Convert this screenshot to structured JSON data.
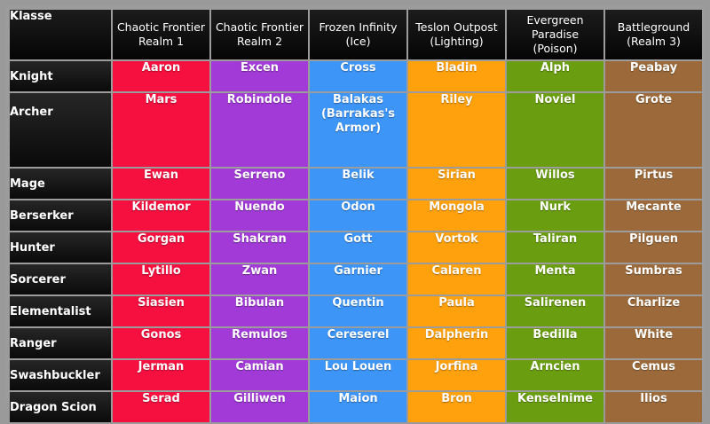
{
  "header": {
    "corner": "Klasse",
    "columns": [
      {
        "line1": "Chaotic Frontier",
        "line2": "Realm 1"
      },
      {
        "line1": "Chaotic Frontier",
        "line2": "Realm 2"
      },
      {
        "line1": "Frozen Infinity",
        "line2": "(Ice)"
      },
      {
        "line1": "Teslon Outpost",
        "line2": "(Lighting)"
      },
      {
        "line1": "Evergreen Paradise",
        "line2": "(Poison)"
      },
      {
        "line1": "Battleground",
        "line2": "(Realm 3)"
      }
    ]
  },
  "colors": {
    "realm1": "#f5103f",
    "realm2": "#a13ad6",
    "ice": "#3d95f7",
    "lighting": "#ffa00d",
    "poison": "#6a9e10",
    "realm3": "#9c6a3a"
  },
  "rows": [
    {
      "klasse": "Knight",
      "cells": [
        "Aaron",
        "Excen",
        "Cross",
        "Bladin",
        "Alph",
        "Peabay"
      ]
    },
    {
      "klasse": "Archer",
      "cells": [
        "Mars",
        "Robindole",
        "Balakas (Barrakas's Armor)",
        "Riley",
        "Noviel",
        "Grote"
      ]
    },
    {
      "klasse": "Mage",
      "cells": [
        "Ewan",
        "Serreno",
        "Belik",
        "Sirian",
        "Willos",
        "Pirtus"
      ]
    },
    {
      "klasse": "Berserker",
      "cells": [
        "Kildemor",
        "Nuendo",
        "Odon",
        "Mongola",
        "Nurk",
        "Mecante"
      ]
    },
    {
      "klasse": "Hunter",
      "cells": [
        "Gorgan",
        "Shakran",
        "Gott",
        "Vortok",
        "Taliran",
        "Pilguen"
      ]
    },
    {
      "klasse": "Sorcerer",
      "cells": [
        "Lytillo",
        "Zwan",
        "Garnier",
        "Calaren",
        "Menta",
        "Sumbras"
      ]
    },
    {
      "klasse": "Elementalist",
      "cells": [
        "Siasien",
        "Bibulan",
        "Quentin",
        "Paula",
        "Salirenen",
        "Charlize"
      ]
    },
    {
      "klasse": "Ranger",
      "cells": [
        "Gonos",
        "Remulos",
        "Cereserel",
        "Dalpherin",
        "Bedilla",
        "White"
      ]
    },
    {
      "klasse": "Swashbuckler",
      "cells": [
        "Jerman",
        "Camian",
        "Lou Louen",
        "Jorfina",
        "Arncien",
        "Cemus"
      ]
    },
    {
      "klasse": "Dragon Scion",
      "cells": [
        "Serad",
        "Gilliwen",
        "Maion",
        "Bron",
        "Kenselnime",
        "Ilios"
      ]
    }
  ]
}
